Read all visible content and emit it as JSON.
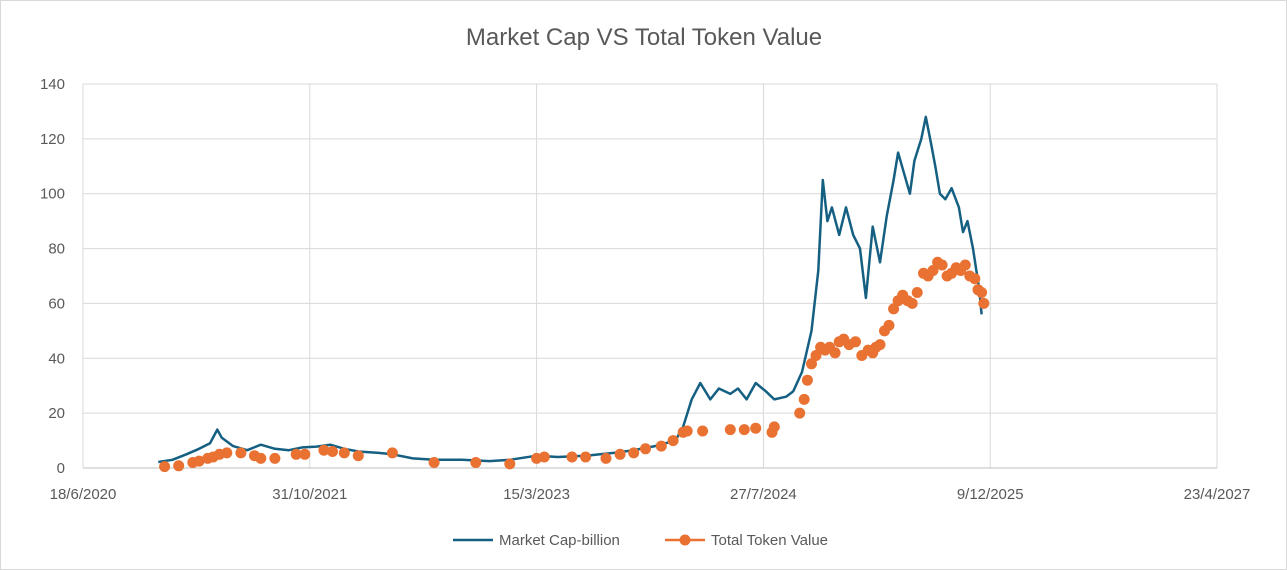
{
  "chart_data": {
    "type": "line",
    "title": "Market Cap VS Total Token Value",
    "xlabel": "",
    "ylabel": "",
    "x_axis_type": "date",
    "xlim": [
      "2020-06-18",
      "2027-04-23"
    ],
    "ylim": [
      0,
      140
    ],
    "x_tick_labels": [
      "18/6/2020",
      "31/10/2021",
      "15/3/2023",
      "27/7/2024",
      "9/12/2025",
      "23/4/2027"
    ],
    "x_tick_dates": [
      "2020-06-18",
      "2021-10-31",
      "2023-03-15",
      "2024-07-27",
      "2025-12-09",
      "2027-04-23"
    ],
    "y_ticks": [
      0,
      20,
      40,
      60,
      80,
      100,
      120,
      140
    ],
    "grid": true,
    "legend_position": "bottom",
    "series": [
      {
        "name": "Market Cap-billion",
        "style": "line",
        "color": "#156082",
        "points": [
          [
            "2020-12-01",
            2.2
          ],
          [
            "2021-01-01",
            3.0
          ],
          [
            "2021-02-01",
            5.0
          ],
          [
            "2021-03-01",
            7.0
          ],
          [
            "2021-03-25",
            9.0
          ],
          [
            "2021-04-10",
            14.0
          ],
          [
            "2021-04-20",
            11.0
          ],
          [
            "2021-05-15",
            8.0
          ],
          [
            "2021-06-15",
            6.5
          ],
          [
            "2021-07-15",
            8.5
          ],
          [
            "2021-08-15",
            7.0
          ],
          [
            "2021-09-15",
            6.5
          ],
          [
            "2021-10-15",
            7.5
          ],
          [
            "2021-11-15",
            7.8
          ],
          [
            "2021-12-15",
            8.5
          ],
          [
            "2022-01-15",
            7.0
          ],
          [
            "2022-02-15",
            6.0
          ],
          [
            "2022-04-01",
            5.5
          ],
          [
            "2022-05-01",
            5.0
          ],
          [
            "2022-06-15",
            3.5
          ],
          [
            "2022-08-01",
            3.0
          ],
          [
            "2022-10-01",
            3.0
          ],
          [
            "2022-12-01",
            2.5
          ],
          [
            "2023-01-15",
            3.0
          ],
          [
            "2023-03-15",
            4.5
          ],
          [
            "2023-05-01",
            4.0
          ],
          [
            "2023-07-01",
            4.5
          ],
          [
            "2023-09-01",
            5.5
          ],
          [
            "2023-10-15",
            6.5
          ],
          [
            "2023-12-01",
            8.0
          ],
          [
            "2024-01-15",
            10.0
          ],
          [
            "2024-02-01",
            15.0
          ],
          [
            "2024-02-20",
            25.0
          ],
          [
            "2024-03-10",
            31.0
          ],
          [
            "2024-04-01",
            25.0
          ],
          [
            "2024-04-20",
            29.0
          ],
          [
            "2024-05-15",
            27.0
          ],
          [
            "2024-06-01",
            29.0
          ],
          [
            "2024-06-20",
            25.0
          ],
          [
            "2024-07-10",
            31.0
          ],
          [
            "2024-08-01",
            28.0
          ],
          [
            "2024-08-20",
            25.0
          ],
          [
            "2024-09-15",
            26.0
          ],
          [
            "2024-10-01",
            28.0
          ],
          [
            "2024-10-20",
            35.0
          ],
          [
            "2024-11-10",
            50.0
          ],
          [
            "2024-11-25",
            72.0
          ],
          [
            "2024-12-05",
            105.0
          ],
          [
            "2024-12-15",
            90.0
          ],
          [
            "2024-12-25",
            95.0
          ],
          [
            "2025-01-10",
            85.0
          ],
          [
            "2025-01-25",
            95.0
          ],
          [
            "2025-02-10",
            85.0
          ],
          [
            "2025-02-25",
            80.0
          ],
          [
            "2025-03-10",
            62.0
          ],
          [
            "2025-03-25",
            88.0
          ],
          [
            "2025-04-10",
            75.0
          ],
          [
            "2025-04-25",
            92.0
          ],
          [
            "2025-05-10",
            105.0
          ],
          [
            "2025-05-20",
            115.0
          ],
          [
            "2025-06-01",
            108.0
          ],
          [
            "2025-06-15",
            100.0
          ],
          [
            "2025-06-25",
            112.0
          ],
          [
            "2025-07-10",
            120.0
          ],
          [
            "2025-07-20",
            128.0
          ],
          [
            "2025-08-01",
            118.0
          ],
          [
            "2025-08-10",
            110.0
          ],
          [
            "2025-08-20",
            100.0
          ],
          [
            "2025-09-01",
            98.0
          ],
          [
            "2025-09-15",
            102.0
          ],
          [
            "2025-10-01",
            95.0
          ],
          [
            "2025-10-10",
            86.0
          ],
          [
            "2025-10-20",
            90.0
          ],
          [
            "2025-11-01",
            80.0
          ],
          [
            "2025-11-15",
            65.0
          ],
          [
            "2025-11-20",
            56.0
          ]
        ]
      },
      {
        "name": "Total Token Value",
        "style": "marker",
        "color": "#e97132",
        "points": [
          [
            "2020-12-15",
            0.5
          ],
          [
            "2021-01-15",
            0.8
          ],
          [
            "2021-02-15",
            2.0
          ],
          [
            "2021-03-01",
            2.5
          ],
          [
            "2021-03-20",
            3.5
          ],
          [
            "2021-04-01",
            4.0
          ],
          [
            "2021-04-15",
            5.0
          ],
          [
            "2021-05-01",
            5.5
          ],
          [
            "2021-06-01",
            5.5
          ],
          [
            "2021-07-01",
            4.5
          ],
          [
            "2021-07-15",
            3.5
          ],
          [
            "2021-08-15",
            3.5
          ],
          [
            "2021-10-01",
            5.0
          ],
          [
            "2021-10-20",
            5.0
          ],
          [
            "2021-12-01",
            6.5
          ],
          [
            "2021-12-20",
            6.0
          ],
          [
            "2022-01-15",
            5.5
          ],
          [
            "2022-02-15",
            4.5
          ],
          [
            "2022-05-01",
            5.5
          ],
          [
            "2022-08-01",
            2.0
          ],
          [
            "2022-11-01",
            2.0
          ],
          [
            "2023-01-15",
            1.5
          ],
          [
            "2023-03-15",
            3.5
          ],
          [
            "2023-04-01",
            4.0
          ],
          [
            "2023-06-01",
            4.0
          ],
          [
            "2023-07-01",
            4.0
          ],
          [
            "2023-08-15",
            3.5
          ],
          [
            "2023-09-15",
            5.0
          ],
          [
            "2023-10-15",
            5.5
          ],
          [
            "2023-11-10",
            7.0
          ],
          [
            "2023-12-15",
            8.0
          ],
          [
            "2024-01-10",
            10.0
          ],
          [
            "2024-02-01",
            13.0
          ],
          [
            "2024-02-10",
            13.5
          ],
          [
            "2024-03-15",
            13.5
          ],
          [
            "2024-05-15",
            14.0
          ],
          [
            "2024-06-15",
            14.0
          ],
          [
            "2024-07-10",
            14.5
          ],
          [
            "2024-08-15",
            13.0
          ],
          [
            "2024-08-20",
            15.0
          ],
          [
            "2024-10-15",
            20.0
          ],
          [
            "2024-10-25",
            25.0
          ],
          [
            "2024-11-01",
            32.0
          ],
          [
            "2024-11-10",
            38.0
          ],
          [
            "2024-11-20",
            41.0
          ],
          [
            "2024-11-30",
            44.0
          ],
          [
            "2024-12-10",
            43.0
          ],
          [
            "2024-12-20",
            44.0
          ],
          [
            "2025-01-01",
            42.0
          ],
          [
            "2025-01-10",
            46.0
          ],
          [
            "2025-01-20",
            47.0
          ],
          [
            "2025-02-01",
            45.0
          ],
          [
            "2025-02-15",
            46.0
          ],
          [
            "2025-03-01",
            41.0
          ],
          [
            "2025-03-15",
            43.0
          ],
          [
            "2025-03-25",
            42.0
          ],
          [
            "2025-04-01",
            44.0
          ],
          [
            "2025-04-10",
            45.0
          ],
          [
            "2025-04-20",
            50.0
          ],
          [
            "2025-04-30",
            52.0
          ],
          [
            "2025-05-10",
            58.0
          ],
          [
            "2025-05-20",
            61.0
          ],
          [
            "2025-05-30",
            63.0
          ],
          [
            "2025-06-10",
            61.0
          ],
          [
            "2025-06-20",
            60.0
          ],
          [
            "2025-07-01",
            64.0
          ],
          [
            "2025-07-15",
            71.0
          ],
          [
            "2025-07-25",
            70.0
          ],
          [
            "2025-08-05",
            72.0
          ],
          [
            "2025-08-15",
            75.0
          ],
          [
            "2025-08-25",
            74.0
          ],
          [
            "2025-09-05",
            70.0
          ],
          [
            "2025-09-15",
            71.0
          ],
          [
            "2025-09-25",
            73.0
          ],
          [
            "2025-10-05",
            72.0
          ],
          [
            "2025-10-15",
            74.0
          ],
          [
            "2025-10-25",
            70.0
          ],
          [
            "2025-11-05",
            69.0
          ],
          [
            "2025-11-12",
            65.0
          ],
          [
            "2025-11-20",
            64.0
          ],
          [
            "2025-11-25",
            60.0
          ]
        ]
      }
    ]
  }
}
